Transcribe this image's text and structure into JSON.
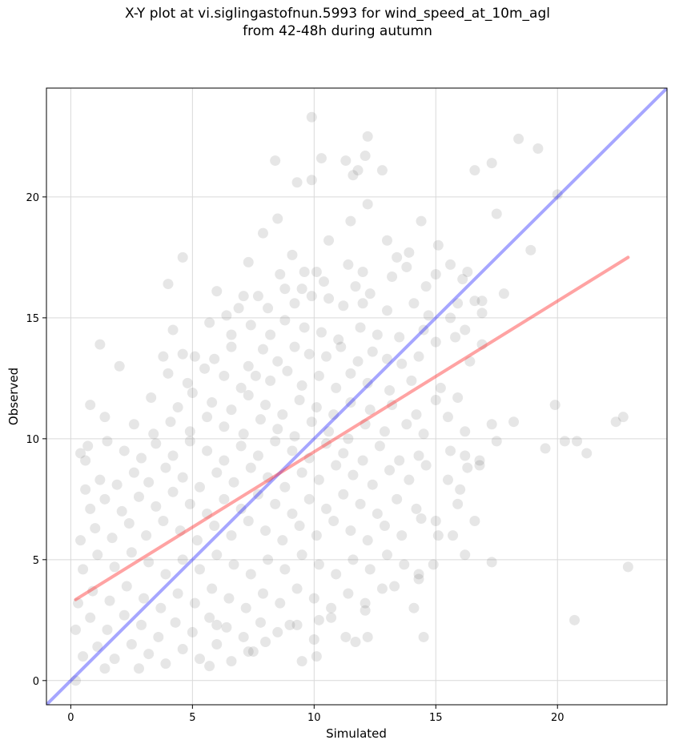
{
  "title_line1": "X-Y plot at vi.siglingastofnun.5993 for wind_speed_at_10m_agl",
  "title_line2": "from 42-48h during autumn",
  "chart_data": {
    "type": "scatter",
    "title": "X-Y plot at vi.siglingastofnun.5993 for wind_speed_at_10m_agl from 42-48h during autumn",
    "xlabel": "Simulated",
    "ylabel": "Observed",
    "xlim": [
      -1,
      24.5
    ],
    "ylim": [
      -1,
      24.5
    ],
    "xticks": [
      0,
      5,
      10,
      15,
      20
    ],
    "yticks": [
      0,
      5,
      10,
      15,
      20
    ],
    "grid": true,
    "marker_color": "#555555",
    "point_alpha": 0.15,
    "reference_line": {
      "name": "1:1",
      "color": "#0000ff",
      "x": [
        -1,
        24.5
      ],
      "y": [
        -1,
        24.5
      ]
    },
    "fit_line": {
      "name": "fit",
      "color": "#ff3333",
      "x": [
        0.2,
        22.9
      ],
      "y": [
        3.35,
        17.5
      ]
    },
    "points": [
      [
        12.2,
        22.5
      ],
      [
        9.9,
        23.3
      ],
      [
        18.4,
        22.4
      ],
      [
        19.2,
        22.0
      ],
      [
        17.3,
        21.4
      ],
      [
        16.6,
        21.1
      ],
      [
        11.8,
        21.1
      ],
      [
        12.8,
        21.1
      ],
      [
        8.4,
        21.5
      ],
      [
        10.3,
        21.6
      ],
      [
        12.1,
        21.7
      ],
      [
        9.3,
        20.6
      ],
      [
        9.9,
        20.7
      ],
      [
        11.6,
        20.9
      ],
      [
        11.3,
        21.5
      ],
      [
        20.0,
        20.1
      ],
      [
        12.2,
        19.7
      ],
      [
        8.5,
        19.1
      ],
      [
        11.5,
        19.0
      ],
      [
        14.4,
        19.0
      ],
      [
        17.5,
        19.3
      ],
      [
        7.9,
        18.5
      ],
      [
        10.6,
        18.2
      ],
      [
        13.0,
        18.2
      ],
      [
        13.4,
        17.5
      ],
      [
        15.1,
        18.0
      ],
      [
        18.9,
        17.8
      ],
      [
        4.6,
        17.5
      ],
      [
        7.3,
        17.3
      ],
      [
        9.1,
        17.6
      ],
      [
        11.4,
        17.2
      ],
      [
        13.9,
        17.7
      ],
      [
        15.6,
        17.2
      ],
      [
        16.3,
        16.9
      ],
      [
        16.1,
        16.6
      ],
      [
        12.0,
        16.9
      ],
      [
        13.8,
        17.1
      ],
      [
        8.6,
        16.8
      ],
      [
        9.6,
        16.9
      ],
      [
        10.1,
        16.9
      ],
      [
        4.0,
        16.4
      ],
      [
        6.0,
        16.1
      ],
      [
        7.1,
        15.9
      ],
      [
        7.7,
        15.9
      ],
      [
        8.8,
        16.2
      ],
      [
        9.5,
        16.2
      ],
      [
        10.4,
        16.5
      ],
      [
        11.7,
        16.3
      ],
      [
        12.3,
        16.0
      ],
      [
        13.2,
        16.7
      ],
      [
        14.6,
        16.3
      ],
      [
        15.0,
        16.8
      ],
      [
        17.8,
        16.0
      ],
      [
        16.6,
        15.7
      ],
      [
        16.9,
        15.7
      ],
      [
        15.9,
        15.6
      ],
      [
        6.4,
        15.1
      ],
      [
        6.9,
        15.4
      ],
      [
        8.1,
        15.4
      ],
      [
        9.2,
        15.6
      ],
      [
        9.9,
        15.9
      ],
      [
        10.6,
        15.8
      ],
      [
        11.2,
        15.5
      ],
      [
        12.0,
        15.6
      ],
      [
        13.0,
        15.3
      ],
      [
        14.1,
        15.6
      ],
      [
        14.7,
        15.1
      ],
      [
        15.6,
        15.0
      ],
      [
        16.9,
        15.2
      ],
      [
        16.2,
        14.5
      ],
      [
        15.8,
        14.2
      ],
      [
        4.2,
        14.5
      ],
      [
        5.7,
        14.8
      ],
      [
        6.6,
        14.3
      ],
      [
        7.4,
        14.7
      ],
      [
        8.2,
        14.3
      ],
      [
        8.8,
        14.9
      ],
      [
        9.6,
        14.6
      ],
      [
        10.3,
        14.4
      ],
      [
        11.0,
        14.1
      ],
      [
        11.9,
        14.6
      ],
      [
        12.6,
        14.3
      ],
      [
        13.5,
        14.2
      ],
      [
        14.5,
        14.5
      ],
      [
        15.0,
        14.0
      ],
      [
        1.2,
        13.9
      ],
      [
        3.8,
        13.4
      ],
      [
        4.6,
        13.5
      ],
      [
        5.1,
        13.4
      ],
      [
        5.9,
        13.3
      ],
      [
        6.6,
        13.8
      ],
      [
        7.3,
        13.0
      ],
      [
        7.9,
        13.7
      ],
      [
        8.5,
        13.2
      ],
      [
        9.2,
        13.8
      ],
      [
        9.8,
        13.5
      ],
      [
        10.5,
        13.4
      ],
      [
        11.1,
        13.8
      ],
      [
        11.8,
        13.2
      ],
      [
        12.4,
        13.6
      ],
      [
        13.0,
        13.3
      ],
      [
        13.6,
        13.1
      ],
      [
        14.3,
        13.4
      ],
      [
        16.4,
        13.2
      ],
      [
        16.9,
        13.9
      ],
      [
        2.0,
        13.0
      ],
      [
        4.0,
        12.7
      ],
      [
        4.8,
        12.3
      ],
      [
        5.5,
        12.9
      ],
      [
        6.3,
        12.6
      ],
      [
        7.0,
        12.1
      ],
      [
        7.6,
        12.6
      ],
      [
        8.2,
        12.4
      ],
      [
        8.9,
        12.8
      ],
      [
        9.5,
        12.2
      ],
      [
        10.2,
        12.6
      ],
      [
        10.9,
        12.1
      ],
      [
        11.5,
        12.7
      ],
      [
        12.2,
        12.3
      ],
      [
        13.1,
        12.0
      ],
      [
        14.0,
        12.4
      ],
      [
        15.2,
        12.1
      ],
      [
        15.9,
        11.7
      ],
      [
        3.3,
        11.7
      ],
      [
        4.4,
        11.3
      ],
      [
        5.0,
        11.9
      ],
      [
        5.8,
        11.5
      ],
      [
        6.6,
        11.2
      ],
      [
        7.3,
        11.8
      ],
      [
        8.0,
        11.4
      ],
      [
        8.7,
        11.0
      ],
      [
        9.4,
        11.6
      ],
      [
        10.1,
        11.3
      ],
      [
        10.8,
        11.0
      ],
      [
        11.5,
        11.5
      ],
      [
        12.3,
        11.2
      ],
      [
        13.2,
        11.4
      ],
      [
        14.2,
        11.0
      ],
      [
        15.0,
        11.6
      ],
      [
        15.5,
        10.9
      ],
      [
        19.9,
        11.4
      ],
      [
        0.8,
        11.4
      ],
      [
        1.4,
        10.9
      ],
      [
        2.6,
        10.6
      ],
      [
        3.4,
        10.2
      ],
      [
        4.1,
        10.7
      ],
      [
        4.9,
        10.3
      ],
      [
        5.6,
        10.9
      ],
      [
        6.3,
        10.5
      ],
      [
        7.1,
        10.2
      ],
      [
        7.8,
        10.8
      ],
      [
        8.5,
        10.4
      ],
      [
        9.2,
        10.1
      ],
      [
        9.9,
        10.7
      ],
      [
        10.6,
        10.3
      ],
      [
        11.4,
        10.0
      ],
      [
        12.1,
        10.6
      ],
      [
        12.9,
        10.3
      ],
      [
        13.8,
        10.6
      ],
      [
        14.5,
        10.2
      ],
      [
        16.2,
        10.3
      ],
      [
        17.3,
        10.6
      ],
      [
        18.2,
        10.7
      ],
      [
        22.4,
        10.7
      ],
      [
        22.7,
        10.9
      ],
      [
        0.4,
        9.4
      ],
      [
        0.6,
        9.1
      ],
      [
        0.7,
        9.7
      ],
      [
        1.5,
        9.9
      ],
      [
        2.2,
        9.5
      ],
      [
        2.9,
        9.2
      ],
      [
        3.5,
        9.8
      ],
      [
        4.2,
        9.3
      ],
      [
        4.9,
        9.9
      ],
      [
        5.6,
        9.5
      ],
      [
        6.3,
        9.1
      ],
      [
        7.0,
        9.7
      ],
      [
        7.7,
        9.3
      ],
      [
        8.4,
        9.9
      ],
      [
        9.1,
        9.5
      ],
      [
        9.8,
        9.2
      ],
      [
        10.5,
        9.8
      ],
      [
        11.2,
        9.4
      ],
      [
        12.0,
        9.1
      ],
      [
        12.7,
        9.7
      ],
      [
        13.5,
        9.1
      ],
      [
        14.3,
        9.3
      ],
      [
        15.6,
        9.5
      ],
      [
        16.2,
        9.3
      ],
      [
        16.8,
        9.1
      ],
      [
        17.5,
        9.9
      ],
      [
        19.5,
        9.6
      ],
      [
        20.3,
        9.9
      ],
      [
        20.8,
        9.9
      ],
      [
        21.2,
        9.4
      ],
      [
        0.6,
        7.9
      ],
      [
        1.2,
        8.3
      ],
      [
        1.9,
        8.1
      ],
      [
        2.6,
        8.6
      ],
      [
        3.2,
        8.2
      ],
      [
        3.9,
        8.8
      ],
      [
        4.6,
        8.4
      ],
      [
        5.3,
        8.0
      ],
      [
        6.0,
        8.6
      ],
      [
        6.7,
        8.2
      ],
      [
        7.4,
        8.8
      ],
      [
        8.1,
        8.4
      ],
      [
        8.8,
        8.0
      ],
      [
        9.5,
        8.6
      ],
      [
        10.2,
        8.3
      ],
      [
        10.9,
        8.9
      ],
      [
        11.6,
        8.5
      ],
      [
        12.4,
        8.1
      ],
      [
        13.1,
        8.7
      ],
      [
        13.9,
        8.3
      ],
      [
        14.6,
        8.9
      ],
      [
        15.5,
        8.3
      ],
      [
        16.0,
        7.9
      ],
      [
        16.3,
        8.8
      ],
      [
        16.8,
        8.9
      ],
      [
        0.8,
        7.1
      ],
      [
        1.4,
        7.5
      ],
      [
        2.1,
        7.0
      ],
      [
        2.8,
        7.6
      ],
      [
        3.5,
        7.2
      ],
      [
        4.2,
        7.8
      ],
      [
        4.9,
        7.3
      ],
      [
        5.6,
        6.9
      ],
      [
        6.3,
        7.5
      ],
      [
        7.0,
        7.1
      ],
      [
        7.7,
        7.7
      ],
      [
        8.4,
        7.3
      ],
      [
        9.1,
        6.9
      ],
      [
        9.8,
        7.5
      ],
      [
        10.5,
        7.1
      ],
      [
        11.2,
        7.7
      ],
      [
        11.9,
        7.3
      ],
      [
        12.6,
        6.9
      ],
      [
        13.4,
        7.5
      ],
      [
        14.2,
        7.1
      ],
      [
        15.0,
        6.6
      ],
      [
        15.9,
        7.3
      ],
      [
        0.4,
        5.8
      ],
      [
        1.0,
        6.3
      ],
      [
        1.7,
        5.9
      ],
      [
        2.4,
        6.5
      ],
      [
        3.1,
        6.0
      ],
      [
        3.8,
        6.6
      ],
      [
        4.5,
        6.2
      ],
      [
        5.2,
        5.8
      ],
      [
        5.9,
        6.4
      ],
      [
        6.6,
        6.0
      ],
      [
        7.3,
        6.6
      ],
      [
        8.0,
        6.2
      ],
      [
        8.7,
        5.8
      ],
      [
        9.4,
        6.4
      ],
      [
        10.1,
        6.0
      ],
      [
        10.8,
        6.6
      ],
      [
        11.5,
        6.2
      ],
      [
        12.2,
        5.8
      ],
      [
        12.9,
        6.4
      ],
      [
        13.6,
        6.0
      ],
      [
        14.4,
        6.7
      ],
      [
        15.1,
        6.0
      ],
      [
        15.7,
        6.0
      ],
      [
        16.6,
        6.6
      ],
      [
        0.5,
        4.6
      ],
      [
        1.1,
        5.2
      ],
      [
        1.8,
        4.7
      ],
      [
        2.5,
        5.3
      ],
      [
        3.2,
        4.9
      ],
      [
        3.9,
        4.4
      ],
      [
        4.6,
        5.0
      ],
      [
        5.3,
        4.6
      ],
      [
        6.0,
        5.2
      ],
      [
        6.7,
        4.8
      ],
      [
        7.4,
        4.4
      ],
      [
        8.1,
        5.0
      ],
      [
        8.8,
        4.6
      ],
      [
        9.5,
        5.2
      ],
      [
        10.2,
        4.8
      ],
      [
        10.9,
        4.4
      ],
      [
        11.6,
        5.0
      ],
      [
        12.3,
        4.6
      ],
      [
        13.0,
        5.2
      ],
      [
        13.7,
        4.8
      ],
      [
        14.3,
        4.4
      ],
      [
        14.9,
        4.8
      ],
      [
        16.2,
        5.2
      ],
      [
        17.3,
        4.9
      ],
      [
        22.9,
        4.7
      ],
      [
        0.3,
        3.2
      ],
      [
        0.9,
        3.7
      ],
      [
        1.6,
        3.3
      ],
      [
        2.3,
        3.9
      ],
      [
        3.0,
        3.4
      ],
      [
        3.7,
        3.0
      ],
      [
        4.4,
        3.6
      ],
      [
        5.1,
        3.2
      ],
      [
        5.8,
        3.8
      ],
      [
        6.5,
        3.4
      ],
      [
        7.2,
        3.0
      ],
      [
        7.9,
        3.6
      ],
      [
        8.6,
        3.2
      ],
      [
        9.3,
        3.8
      ],
      [
        10.0,
        3.4
      ],
      [
        10.7,
        3.0
      ],
      [
        11.4,
        3.6
      ],
      [
        12.1,
        3.2
      ],
      [
        12.8,
        3.8
      ],
      [
        13.3,
        3.9
      ],
      [
        14.1,
        3.0
      ],
      [
        14.3,
        4.2
      ],
      [
        0.2,
        2.1
      ],
      [
        0.8,
        2.6
      ],
      [
        1.5,
        2.1
      ],
      [
        2.2,
        2.7
      ],
      [
        2.9,
        2.3
      ],
      [
        3.6,
        1.8
      ],
      [
        4.3,
        2.4
      ],
      [
        5.0,
        2.0
      ],
      [
        5.7,
        2.6
      ],
      [
        6.4,
        2.2
      ],
      [
        7.1,
        1.8
      ],
      [
        7.8,
        2.4
      ],
      [
        8.5,
        2.0
      ],
      [
        9.3,
        2.3
      ],
      [
        10.2,
        2.5
      ],
      [
        10.7,
        2.6
      ],
      [
        12.1,
        2.9
      ],
      [
        20.7,
        2.5
      ],
      [
        0.5,
        1.0
      ],
      [
        1.1,
        1.4
      ],
      [
        1.8,
        0.9
      ],
      [
        2.5,
        1.5
      ],
      [
        3.2,
        1.1
      ],
      [
        3.9,
        0.7
      ],
      [
        4.6,
        1.3
      ],
      [
        5.3,
        0.9
      ],
      [
        6.0,
        1.5
      ],
      [
        6.6,
        0.8
      ],
      [
        7.3,
        1.2
      ],
      [
        8.0,
        1.6
      ],
      [
        9.5,
        0.8
      ],
      [
        10.1,
        1.0
      ],
      [
        11.3,
        1.8
      ],
      [
        11.7,
        1.6
      ],
      [
        12.2,
        1.8
      ],
      [
        14.5,
        1.8
      ],
      [
        1.4,
        0.5
      ],
      [
        2.8,
        0.5
      ],
      [
        5.7,
        0.6
      ],
      [
        6.0,
        2.3
      ],
      [
        7.5,
        1.2
      ],
      [
        9.0,
        2.3
      ],
      [
        10.0,
        1.7
      ],
      [
        0.2,
        0.0
      ]
    ]
  }
}
